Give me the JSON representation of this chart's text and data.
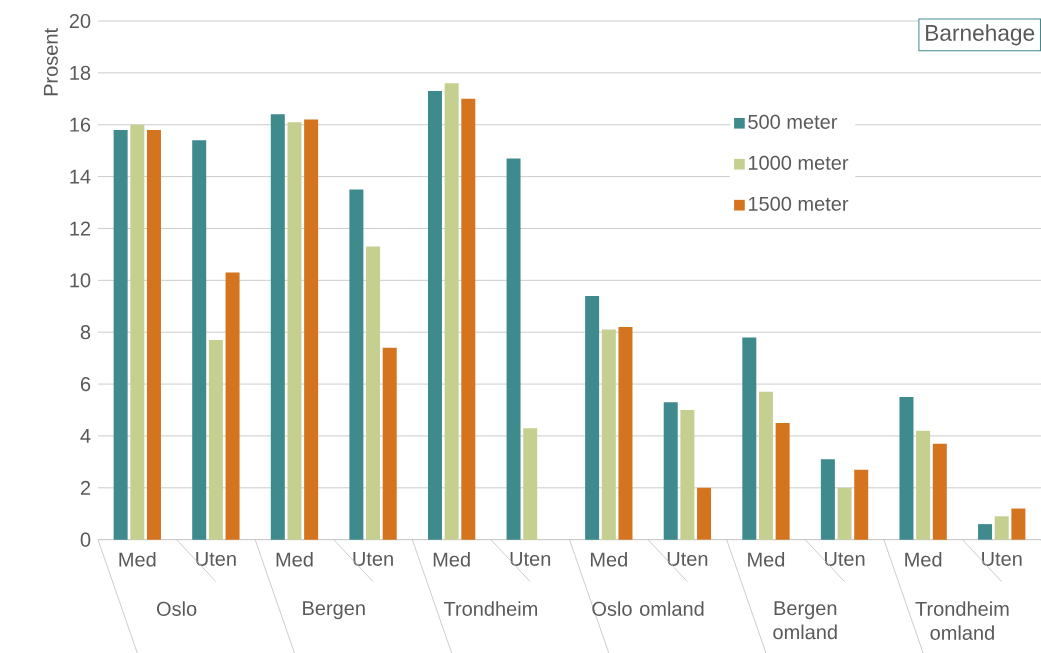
{
  "chart_data": {
    "type": "bar",
    "title": "Barnehage",
    "ylabel": "Prosent",
    "categories": [
      "Med",
      "Uten",
      "Med",
      "Uten",
      "Med",
      "Uten",
      "Med",
      "Uten",
      "Med",
      "Uten",
      "Med",
      "Uten"
    ],
    "annotations": [
      "Oslo",
      "Bergen",
      "Trondheim",
      "Oslo omland",
      "Bergen omland",
      "Trondheim omland"
    ],
    "series": [
      {
        "name": "500 meter",
        "color": "#3f8a8c",
        "values": [
          15.8,
          15.4,
          16.4,
          13.5,
          17.3,
          14.7,
          9.4,
          5.3,
          7.8,
          3.1,
          5.5,
          0.6
        ]
      },
      {
        "name": "1000 meter",
        "color": "#c5cf8f",
        "values": [
          16.0,
          7.7,
          16.1,
          11.3,
          17.6,
          4.3,
          8.1,
          5.0,
          5.7,
          2.0,
          4.2,
          0.9
        ]
      },
      {
        "name": "1500 meter",
        "color": "#d4741e",
        "values": [
          15.8,
          10.3,
          16.2,
          7.4,
          17.0,
          null,
          8.2,
          2.0,
          4.5,
          2.7,
          3.7,
          1.2
        ]
      }
    ],
    "ylim": [
      0,
      20
    ],
    "yticks": [
      0,
      2,
      4,
      6,
      8,
      10,
      12,
      14,
      16,
      18,
      20
    ],
    "grid": "y",
    "legend": "top right"
  }
}
